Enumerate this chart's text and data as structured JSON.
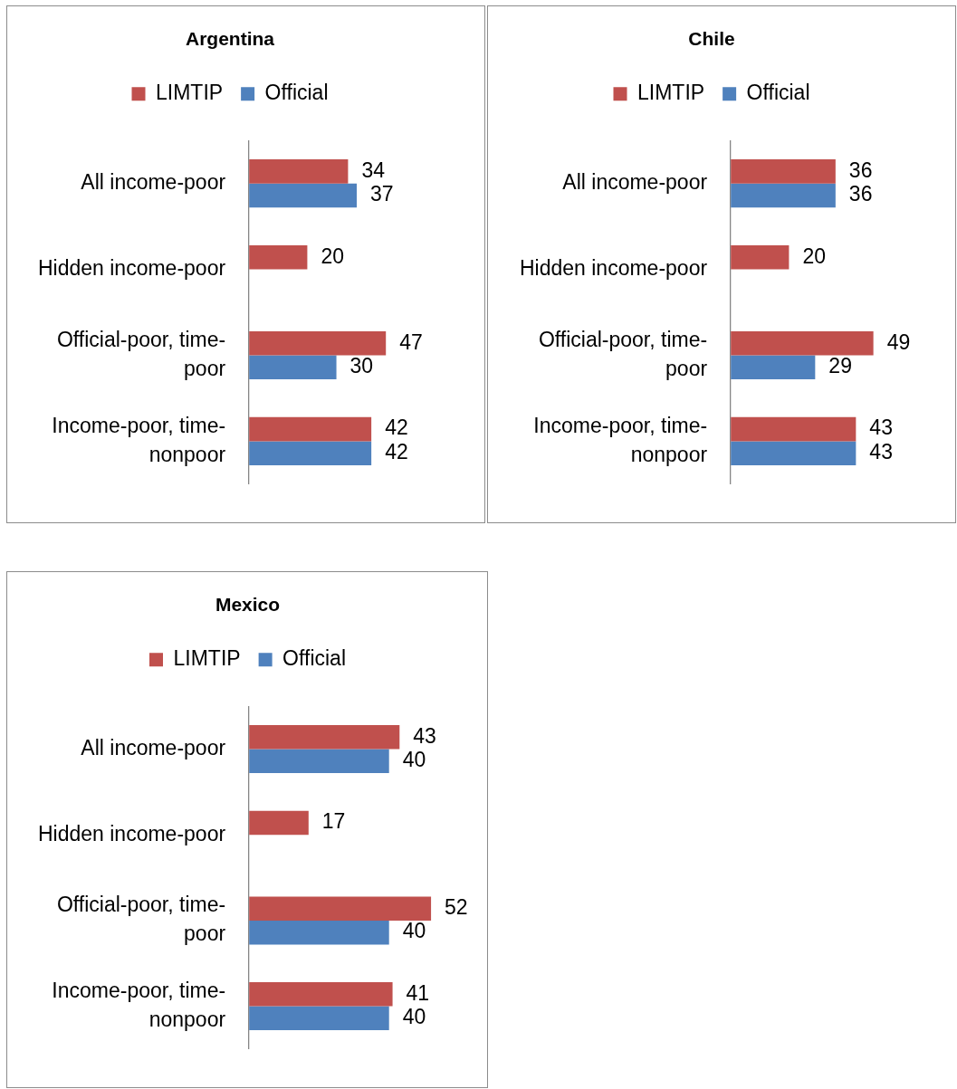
{
  "chart_data": [
    {
      "type": "bar",
      "title": "Argentina",
      "orientation": "horizontal",
      "categories": [
        "All income-poor",
        "Hidden income-poor",
        "Official-poor, time-poor",
        "Income-poor, time-nonpoor"
      ],
      "series": [
        {
          "name": "LIMTIP",
          "color": "#c0504d",
          "values": [
            34,
            20,
            47,
            42
          ]
        },
        {
          "name": "Official",
          "color": "#4f81bd",
          "values": [
            37,
            null,
            30,
            42
          ]
        }
      ],
      "legend": "top",
      "data_labels": true,
      "tick_labels": "y"
    },
    {
      "type": "bar",
      "title": "Chile",
      "orientation": "horizontal",
      "categories": [
        "All income-poor",
        "Hidden income-poor",
        "Official-poor, time-poor",
        "Income-poor, time-nonpoor"
      ],
      "series": [
        {
          "name": "LIMTIP",
          "color": "#c0504d",
          "values": [
            36,
            20,
            49,
            43
          ]
        },
        {
          "name": "Official",
          "color": "#4f81bd",
          "values": [
            36,
            null,
            29,
            43
          ]
        }
      ],
      "legend": "top",
      "data_labels": true,
      "tick_labels": "y"
    },
    {
      "type": "bar",
      "title": "Mexico",
      "orientation": "horizontal",
      "categories": [
        "All income-poor",
        "Hidden income-poor",
        "Official-poor, time-poor",
        "Income-poor, time-nonpoor"
      ],
      "series": [
        {
          "name": "LIMTIP",
          "color": "#c0504d",
          "values": [
            43,
            17,
            52,
            41
          ]
        },
        {
          "name": "Official",
          "color": "#4f81bd",
          "values": [
            40,
            null,
            40,
            40
          ]
        }
      ],
      "legend": "top",
      "data_labels": true,
      "tick_labels": "y"
    }
  ]
}
